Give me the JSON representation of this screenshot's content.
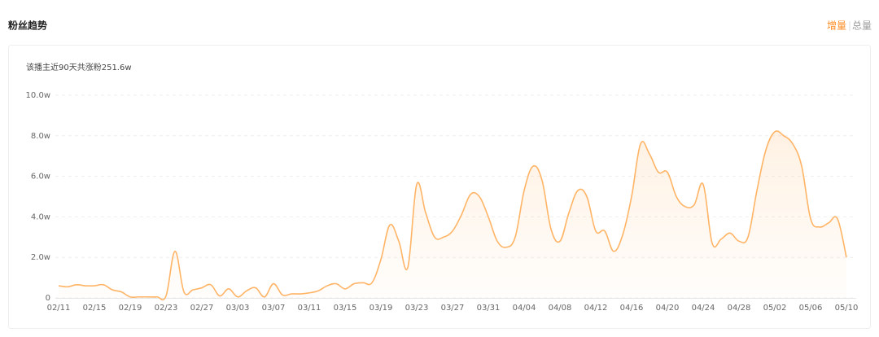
{
  "header": {
    "title": "粉丝趋势",
    "toggle": [
      "增量",
      "总量"
    ]
  },
  "chart_data": {
    "type": "line",
    "subtitle": "该播主近90天共涨粉251.6w",
    "categories": [
      "02/11",
      null,
      null,
      null,
      "02/15",
      null,
      null,
      null,
      "02/19",
      null,
      null,
      null,
      "02/23",
      null,
      null,
      null,
      "02/27",
      null,
      null,
      null,
      "03/03",
      null,
      null,
      null,
      "03/07",
      null,
      null,
      null,
      "03/11",
      null,
      null,
      null,
      "03/15",
      null,
      null,
      null,
      "03/19",
      null,
      null,
      null,
      "03/23",
      null,
      null,
      null,
      "03/27",
      null,
      null,
      null,
      "03/31",
      null,
      null,
      null,
      "04/04",
      null,
      null,
      null,
      "04/08",
      null,
      null,
      null,
      "04/12",
      null,
      null,
      null,
      "04/16",
      null,
      null,
      null,
      "04/20",
      null,
      null,
      null,
      "04/24",
      null,
      null,
      null,
      "04/28",
      null,
      null,
      null,
      "05/02",
      null,
      null,
      null,
      "05/06",
      null,
      null,
      null,
      "05/10"
    ],
    "values": [
      0.6,
      0.55,
      0.65,
      0.6,
      0.6,
      0.65,
      0.4,
      0.3,
      0.05,
      0.05,
      0.05,
      0.05,
      0.1,
      2.3,
      0.3,
      0.4,
      0.5,
      0.65,
      0.1,
      0.45,
      0.05,
      0.35,
      0.5,
      0.05,
      0.7,
      0.15,
      0.2,
      0.2,
      0.25,
      0.35,
      0.6,
      0.7,
      0.45,
      0.7,
      0.75,
      0.75,
      1.9,
      3.6,
      2.8,
      1.5,
      5.6,
      4.2,
      3.0,
      3.0,
      3.3,
      4.1,
      5.1,
      5.0,
      4.0,
      2.8,
      2.5,
      3.0,
      5.3,
      6.5,
      5.8,
      3.4,
      2.8,
      4.2,
      5.3,
      5.0,
      3.3,
      3.3,
      2.3,
      3.1,
      5.0,
      7.6,
      7.1,
      6.2,
      6.2,
      5.0,
      4.5,
      4.6,
      5.6,
      2.7,
      2.9,
      3.2,
      2.8,
      3.0,
      5.3,
      7.3,
      8.2,
      8.0,
      7.6,
      6.5,
      3.9,
      3.5,
      3.7,
      3.9,
      2.0
    ],
    "color": "#ffb466",
    "ylim": [
      0,
      10
    ],
    "yticks": [
      0,
      {
        "value": 2,
        "label": "2.0w"
      },
      {
        "value": 4,
        "label": "4.0w"
      },
      {
        "value": 6,
        "label": "6.0w"
      },
      {
        "value": 8,
        "label": "8.0w"
      },
      {
        "value": 10,
        "label": "10.0w"
      }
    ],
    "grid": true
  }
}
